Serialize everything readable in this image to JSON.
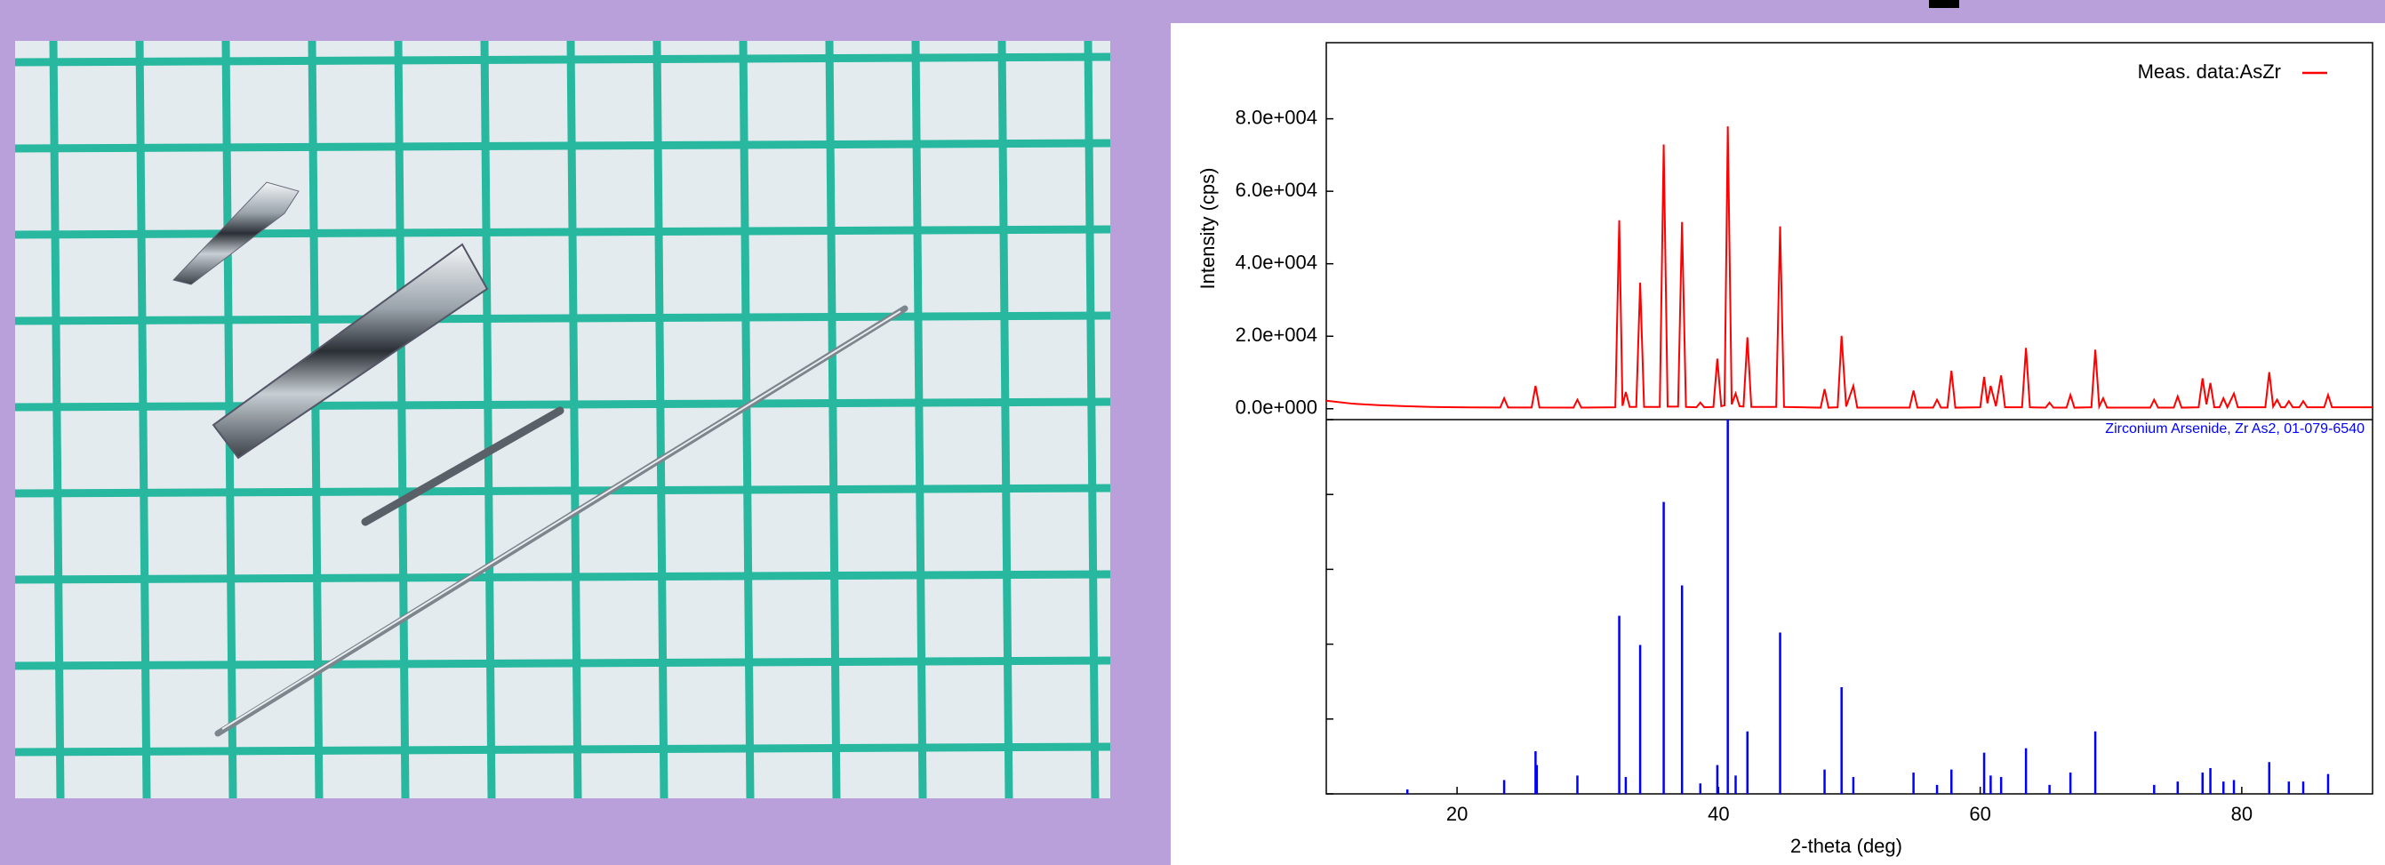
{
  "chart_data": {
    "type": "line",
    "x_label": "2-theta (deg)",
    "y_label": "Intensity (cps)",
    "xlim": [
      10,
      90
    ],
    "xticks": [
      20,
      40,
      60,
      80
    ],
    "ylim": [
      -3000,
      101000
    ],
    "yticks": [
      {
        "value": 0,
        "label": "0.0e+000"
      },
      {
        "value": 20000,
        "label": "2.0e+004"
      },
      {
        "value": 40000,
        "label": "4.0e+004"
      },
      {
        "value": 60000,
        "label": "6.0e+004"
      },
      {
        "value": 80000,
        "label": "8.0e+004"
      }
    ],
    "legend": "upper right",
    "series": [
      {
        "name": "Meas. data:AsZr",
        "color": "#ff0000",
        "x": [
          10,
          12,
          14,
          16,
          18,
          20,
          23.3,
          23.6,
          23.9,
          25.7,
          26.0,
          26.3,
          28.9,
          29.2,
          29.5,
          32.1,
          32.4,
          32.65,
          32.9,
          33.2,
          33.7,
          34.0,
          34.3,
          35.5,
          35.8,
          36.1,
          36.9,
          37.2,
          37.5,
          38.3,
          38.6,
          38.9,
          39.6,
          39.9,
          40.2,
          40.45,
          40.7,
          41.0,
          41.3,
          41.6,
          41.9,
          42.2,
          42.5,
          44.4,
          44.7,
          45.0,
          47.8,
          48.1,
          48.4,
          49.1,
          49.4,
          49.75,
          50.3,
          50.6,
          54.6,
          54.9,
          55.2,
          56.4,
          56.7,
          57.0,
          57.5,
          57.8,
          58.1,
          60.0,
          60.3,
          60.55,
          60.8,
          61.2,
          61.6,
          61.9,
          63.2,
          63.5,
          63.8,
          65.0,
          65.3,
          65.6,
          66.6,
          66.9,
          67.2,
          68.5,
          68.8,
          69.1,
          69.4,
          69.7,
          73.0,
          73.3,
          73.6,
          74.8,
          75.1,
          75.4,
          76.7,
          77.0,
          77.3,
          77.6,
          77.9,
          78.3,
          78.6,
          78.9,
          79.4,
          79.7,
          81.8,
          82.1,
          82.4,
          82.7,
          83.0,
          83.3,
          83.6,
          83.9,
          84.4,
          84.7,
          85.0,
          86.3,
          86.6,
          86.9,
          90
        ],
        "values": [
          2200,
          1400,
          1000,
          700,
          500,
          400,
          350,
          2900,
          350,
          350,
          6300,
          350,
          300,
          2500,
          300,
          400,
          52000,
          800,
          4600,
          500,
          500,
          34800,
          500,
          500,
          72900,
          600,
          600,
          51500,
          500,
          400,
          1700,
          400,
          500,
          13800,
          700,
          900,
          77900,
          1200,
          4200,
          700,
          600,
          19700,
          500,
          500,
          50300,
          500,
          300,
          5400,
          300,
          400,
          20100,
          600,
          6300,
          300,
          300,
          5000,
          300,
          300,
          2500,
          300,
          300,
          10500,
          300,
          400,
          8800,
          1500,
          6300,
          700,
          9200,
          400,
          400,
          16800,
          400,
          300,
          1700,
          300,
          300,
          3800,
          300,
          400,
          16300,
          600,
          2900,
          300,
          300,
          2500,
          300,
          300,
          3400,
          300,
          400,
          8400,
          1200,
          7100,
          400,
          400,
          2900,
          400,
          4200,
          400,
          400,
          10100,
          600,
          2500,
          400,
          400,
          2100,
          400,
          400,
          2100,
          400,
          400,
          3800,
          400,
          400
        ]
      }
    ],
    "reference": {
      "name": "Zirconium Arsenide, Zr As2, 01-079-6540",
      "color": "#0000ff",
      "ylim": [
        0,
        100
      ],
      "yticks": [
        0,
        20,
        40,
        60,
        80,
        100
      ],
      "x": [
        16.2,
        23.6,
        26.0,
        26.1,
        29.2,
        32.4,
        32.9,
        34.0,
        35.8,
        37.2,
        38.6,
        39.9,
        40.7,
        41.3,
        42.2,
        44.7,
        48.1,
        49.4,
        50.3,
        54.9,
        56.7,
        57.8,
        60.3,
        60.8,
        61.6,
        63.5,
        65.3,
        66.9,
        68.8,
        73.3,
        75.1,
        77.0,
        77.6,
        78.6,
        79.4,
        82.1,
        83.6,
        84.7,
        86.6
      ],
      "values": [
        1.2,
        3.7,
        11.4,
        7.7,
        4.9,
        47.6,
        4.5,
        39.8,
        78,
        55.7,
        2.8,
        7.7,
        100,
        4.9,
        16.7,
        43.1,
        6.5,
        28.5,
        4.5,
        5.7,
        2.4,
        6.5,
        11.0,
        4.9,
        4.5,
        12.2,
        2.4,
        5.7,
        16.7,
        2.4,
        3.3,
        5.7,
        6.9,
        3.3,
        3.7,
        8.5,
        3.3,
        3.3,
        5.3
      ]
    }
  }
}
